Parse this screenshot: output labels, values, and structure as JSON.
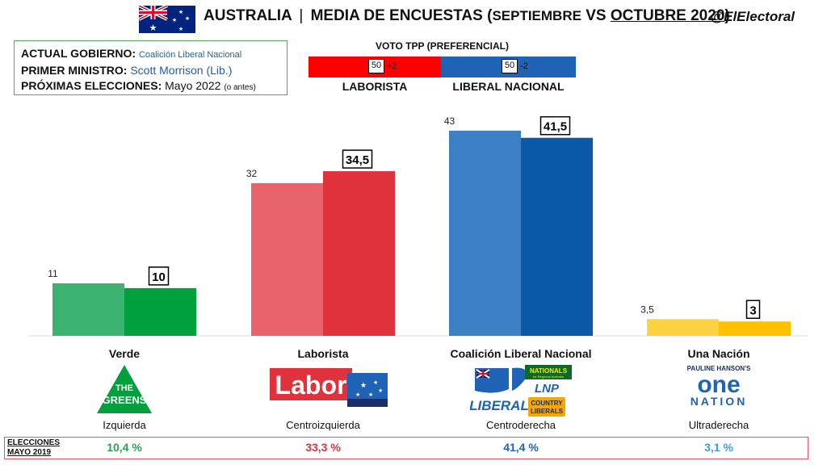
{
  "header": {
    "country": "AUSTRALIA",
    "separator": "|",
    "title_main": "MEDIA DE ENCUESTAS",
    "paren_open": "(",
    "period_a": "SEPTIEMBRE",
    "vs": "VS",
    "period_b": "OCTUBRE 2020",
    "paren_close": ")",
    "handle": "@ElElectoral",
    "flag_icon": "australia-flag-icon"
  },
  "info": {
    "gov_label": "ACTUAL GOBIERNO:",
    "gov_value": "Coalición Liberal Nacional",
    "pm_label": "PRIMER MINISTRO:",
    "pm_value": "Scott Morrison (Lib.)",
    "next_label": "PRÓXIMAS ELECCIONES:",
    "next_value": "Mayo 2022",
    "next_note": "(o antes)"
  },
  "tpp": {
    "title": "VOTO TPP (PREFERENCIAL)",
    "left": {
      "name": "LABORISTA",
      "value": "50",
      "change": "+2",
      "share": 0.496,
      "color": "#ff0000"
    },
    "right": {
      "name": "LIBERAL NACIONAL",
      "value": "50",
      "change": "-2",
      "share": 0.504,
      "color": "#1e63b5"
    }
  },
  "chart_data": {
    "type": "bar",
    "title": "AUSTRALIA | MEDIA DE ENCUESTAS (SEPTIEMBRE VS OCTUBRE 2020)",
    "categories": [
      "Verde",
      "Laborista",
      "Coalición Liberal Nacional",
      "Una Nación"
    ],
    "series": [
      {
        "name": "SEPTIEMBRE",
        "values": [
          11,
          32,
          43,
          3.5
        ],
        "labels": [
          "11",
          "32",
          "43",
          "3,5"
        ]
      },
      {
        "name": "OCTUBRE 2020",
        "values": [
          10,
          34.5,
          41.5,
          3
        ],
        "labels": [
          "10",
          "34,5",
          "41,5",
          "3"
        ]
      }
    ],
    "colors_sep": [
      "#3cb371",
      "#e8636b",
      "#3c7fc4",
      "#ffd23f"
    ],
    "colors_oct": [
      "#00a03c",
      "#e0323c",
      "#0a5aa8",
      "#ffc000"
    ],
    "ylim": [
      0,
      45
    ],
    "grid": false,
    "legend": "none"
  },
  "parties": [
    {
      "name": "Verde",
      "ideology": "Izquierda",
      "result_2019": "10,4 %",
      "result_color": "#22a84a",
      "logo_icon": "greens-logo-icon"
    },
    {
      "name": "Laborista",
      "ideology": "Centroizquierda",
      "result_2019": "33,3 %",
      "result_color": "#e0323c",
      "logo_icon": "labor-logo-icon"
    },
    {
      "name": "Coalición Liberal Nacional",
      "ideology": "Centroderecha",
      "result_2019": "41,4 %",
      "result_color": "#1e63b5",
      "logo_icon": "coalition-logos-icon"
    },
    {
      "name": "Una Nación",
      "ideology": "Ultraderecha",
      "result_2019": "3,1 %",
      "result_color": "#3a9ee0",
      "logo_icon": "one-nation-logo-icon"
    }
  ],
  "elections": {
    "label_line1": "ELECCIONES",
    "label_line2": "MAYO 2019"
  },
  "logos": {
    "greens": [
      "THE",
      "GREENS"
    ],
    "labor": "Labor",
    "liberal": "LIBERAL",
    "nationals_line1": "NATIONALS",
    "nationals_line2": "for Regional Australia",
    "lnp": "LNP",
    "country_liberals_1": "COUNTRY",
    "country_liberals_2": "LIBERALS",
    "one_nation_top": "PAULINE HANSON'S",
    "one_nation_one": "one",
    "one_nation_nation": "NATION"
  }
}
